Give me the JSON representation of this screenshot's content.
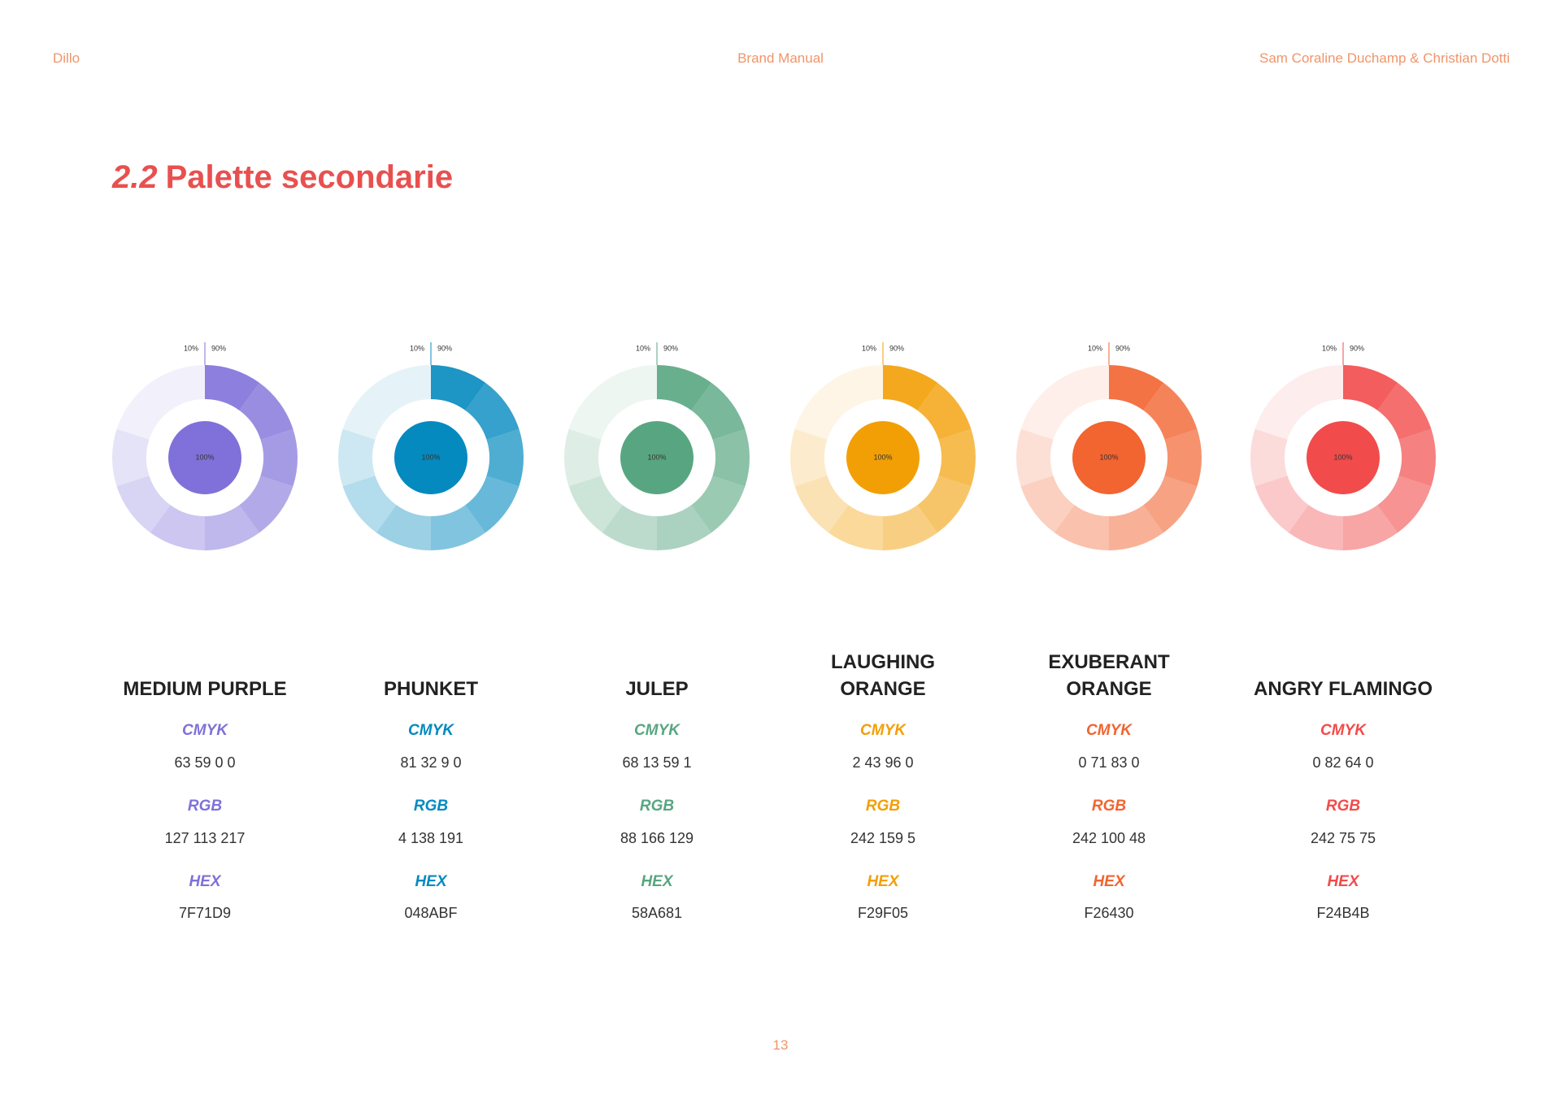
{
  "header": {
    "left": "Dillo",
    "center": "Brand Manual",
    "right": "Sam Coraline Duchamp & Christian Dotti"
  },
  "title": {
    "number": "2.2",
    "text": "Palette secondarie"
  },
  "ring": {
    "start": "10%",
    "end": "90%",
    "center": "100%"
  },
  "swatches": [
    {
      "name": [
        "MEDIUM PURPLE"
      ],
      "cmyk_label": "CMYK",
      "cmyk": "63 59 0 0",
      "rgb_label": "RGB",
      "rgb": "127 113 217",
      "hex_label": "HEX",
      "hex": "7F71D9"
    },
    {
      "name": [
        "PHUNKET"
      ],
      "cmyk_label": "CMYK",
      "cmyk": "81 32 9 0",
      "rgb_label": "RGB",
      "rgb": "4 138 191",
      "hex_label": "HEX",
      "hex": "048ABF"
    },
    {
      "name": [
        "JULEP"
      ],
      "cmyk_label": "CMYK",
      "cmyk": "68 13 59 1",
      "rgb_label": "RGB",
      "rgb": "88 166 129",
      "hex_label": "HEX",
      "hex": "58A681"
    },
    {
      "name": [
        "LAUGHING",
        "ORANGE"
      ],
      "cmyk_label": "CMYK",
      "cmyk": "2 43 96 0",
      "rgb_label": "RGB",
      "rgb": "242 159 5",
      "hex_label": "HEX",
      "hex": "F29F05"
    },
    {
      "name": [
        "EXUBERANT",
        "ORANGE"
      ],
      "cmyk_label": "CMYK",
      "cmyk": "0 71 83 0",
      "rgb_label": "RGB",
      "rgb": "242 100 48",
      "hex_label": "HEX",
      "hex": "F26430"
    },
    {
      "name": [
        "ANGRY FLAMINGO"
      ],
      "cmyk_label": "CMYK",
      "cmyk": "0 82 64 0",
      "rgb_label": "RGB",
      "rgb": "242 75 75",
      "hex_label": "HEX",
      "hex": "F24B4B"
    }
  ],
  "page_number": "13"
}
